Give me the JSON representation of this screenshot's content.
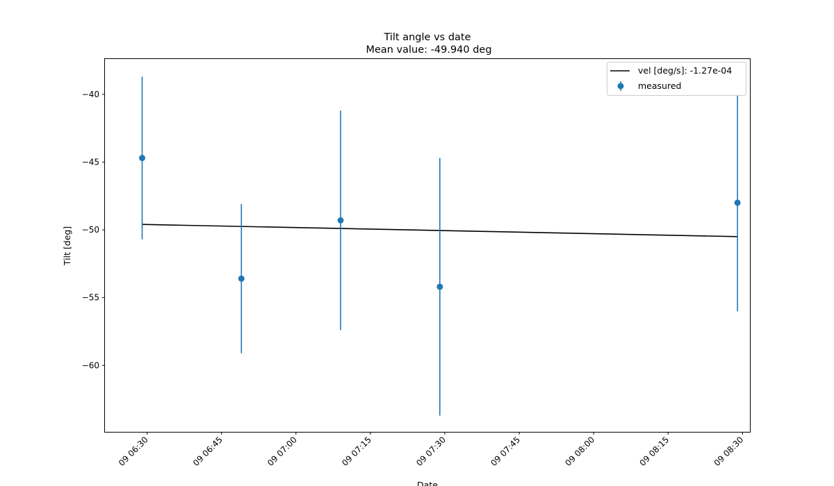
{
  "chart_data": {
    "type": "scatter",
    "title": "Tilt angle vs date",
    "subtitle": "Mean value: -49.940 deg",
    "xlabel": "Date",
    "ylabel": "Tilt [deg]",
    "xlim": [
      "06:21:30",
      "08:31:30"
    ],
    "ylim": [
      -64.9,
      -37.4
    ],
    "x_ticks": [
      {
        "time": "06:30",
        "label": "09 06:30"
      },
      {
        "time": "06:45",
        "label": "09 06:45"
      },
      {
        "time": "07:00",
        "label": "09 07:00"
      },
      {
        "time": "07:15",
        "label": "09 07:15"
      },
      {
        "time": "07:30",
        "label": "09 07:30"
      },
      {
        "time": "07:45",
        "label": "09 07:45"
      },
      {
        "time": "08:00",
        "label": "09 08:00"
      },
      {
        "time": "08:15",
        "label": "09 08:15"
      },
      {
        "time": "08:30",
        "label": "09 08:30"
      }
    ],
    "y_ticks": [
      {
        "value": -40,
        "label": "−40"
      },
      {
        "value": -45,
        "label": "−45"
      },
      {
        "value": -50,
        "label": "−50"
      },
      {
        "value": -55,
        "label": "−55"
      },
      {
        "value": -60,
        "label": "−60"
      }
    ],
    "series": [
      {
        "name": "measured",
        "kind": "errorbar",
        "color": "#1f77b4",
        "points": [
          {
            "time": "06:29",
            "y": -44.7,
            "err": 6.0
          },
          {
            "time": "06:49",
            "y": -53.6,
            "err": 5.5
          },
          {
            "time": "07:09",
            "y": -49.3,
            "err": 8.1
          },
          {
            "time": "07:29",
            "y": -54.2,
            "err": 9.5
          },
          {
            "time": "08:29",
            "y": -48.0,
            "err": 8.0
          }
        ]
      },
      {
        "name": "vel [deg/s]: -1.27e-04",
        "kind": "line",
        "color": "#000000",
        "points": [
          {
            "time": "06:29",
            "y": -49.6
          },
          {
            "time": "08:29",
            "y": -50.5
          }
        ]
      }
    ],
    "legend_placement": "top-right",
    "grid": false
  }
}
